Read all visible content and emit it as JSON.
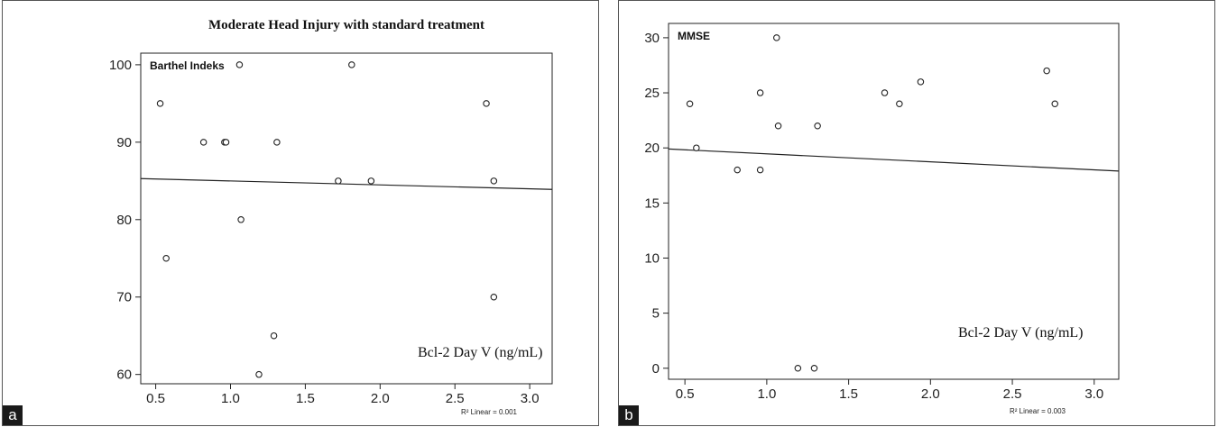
{
  "chart_data": [
    {
      "type": "scatter",
      "panel_label": "a",
      "title": "Moderate Head Injury with standard treatment",
      "ylabel": "Barthel Indeks",
      "xlabel": "Bcl-2 Day V (ng/mL)",
      "fit_annotation": "R² Linear = 0.001",
      "xlim": [
        0.4,
        3.15
      ],
      "ylim": [
        58.8,
        101.5
      ],
      "x_ticks": [
        0.5,
        1.0,
        1.5,
        2.0,
        2.5,
        3.0
      ],
      "x_tick_labels": [
        "0.5",
        "1.0",
        "1.5",
        "2.0",
        "2.5",
        "3.0"
      ],
      "y_ticks": [
        60,
        70,
        80,
        90,
        100
      ],
      "y_tick_labels": [
        "60",
        "70",
        "80",
        "90",
        "100"
      ],
      "grid": false,
      "points": [
        {
          "x": 0.53,
          "y": 95
        },
        {
          "x": 0.57,
          "y": 75
        },
        {
          "x": 0.82,
          "y": 90
        },
        {
          "x": 0.96,
          "y": 90
        },
        {
          "x": 0.97,
          "y": 90
        },
        {
          "x": 1.06,
          "y": 100
        },
        {
          "x": 1.07,
          "y": 80
        },
        {
          "x": 1.19,
          "y": 60
        },
        {
          "x": 1.29,
          "y": 65
        },
        {
          "x": 1.31,
          "y": 90
        },
        {
          "x": 1.72,
          "y": 85
        },
        {
          "x": 1.81,
          "y": 100
        },
        {
          "x": 1.94,
          "y": 85
        },
        {
          "x": 2.71,
          "y": 95
        },
        {
          "x": 2.76,
          "y": 85
        },
        {
          "x": 2.76,
          "y": 70
        }
      ],
      "fit_line": {
        "x": [
          0.4,
          3.15
        ],
        "y": [
          85.3,
          83.9
        ]
      }
    },
    {
      "type": "scatter",
      "panel_label": "b",
      "title": "",
      "ylabel": "MMSE",
      "xlabel": "Bcl-2 Day V (ng/mL)",
      "fit_annotation": "R² Linear = 0.003",
      "xlim": [
        0.4,
        3.15
      ],
      "ylim": [
        -1,
        31.3
      ],
      "x_ticks": [
        0.5,
        1.0,
        1.5,
        2.0,
        2.5,
        3.0
      ],
      "x_tick_labels": [
        "0.5",
        "1.0",
        "1.5",
        "2.0",
        "2.5",
        "3.0"
      ],
      "y_ticks": [
        0,
        5,
        10,
        15,
        20,
        25,
        30
      ],
      "y_tick_labels": [
        "0",
        "5",
        "10",
        "15",
        "20",
        "25",
        "30"
      ],
      "grid": false,
      "points": [
        {
          "x": 0.53,
          "y": 24
        },
        {
          "x": 0.57,
          "y": 20
        },
        {
          "x": 0.82,
          "y": 18
        },
        {
          "x": 0.96,
          "y": 25
        },
        {
          "x": 0.96,
          "y": 18
        },
        {
          "x": 1.06,
          "y": 30
        },
        {
          "x": 1.07,
          "y": 22
        },
        {
          "x": 1.19,
          "y": 0
        },
        {
          "x": 1.29,
          "y": 0
        },
        {
          "x": 1.31,
          "y": 22
        },
        {
          "x": 1.72,
          "y": 25
        },
        {
          "x": 1.81,
          "y": 24
        },
        {
          "x": 1.94,
          "y": 26
        },
        {
          "x": 2.71,
          "y": 27
        },
        {
          "x": 2.76,
          "y": 24
        }
      ],
      "fit_line": {
        "x": [
          0.4,
          3.15
        ],
        "y": [
          19.9,
          17.9
        ]
      }
    }
  ]
}
